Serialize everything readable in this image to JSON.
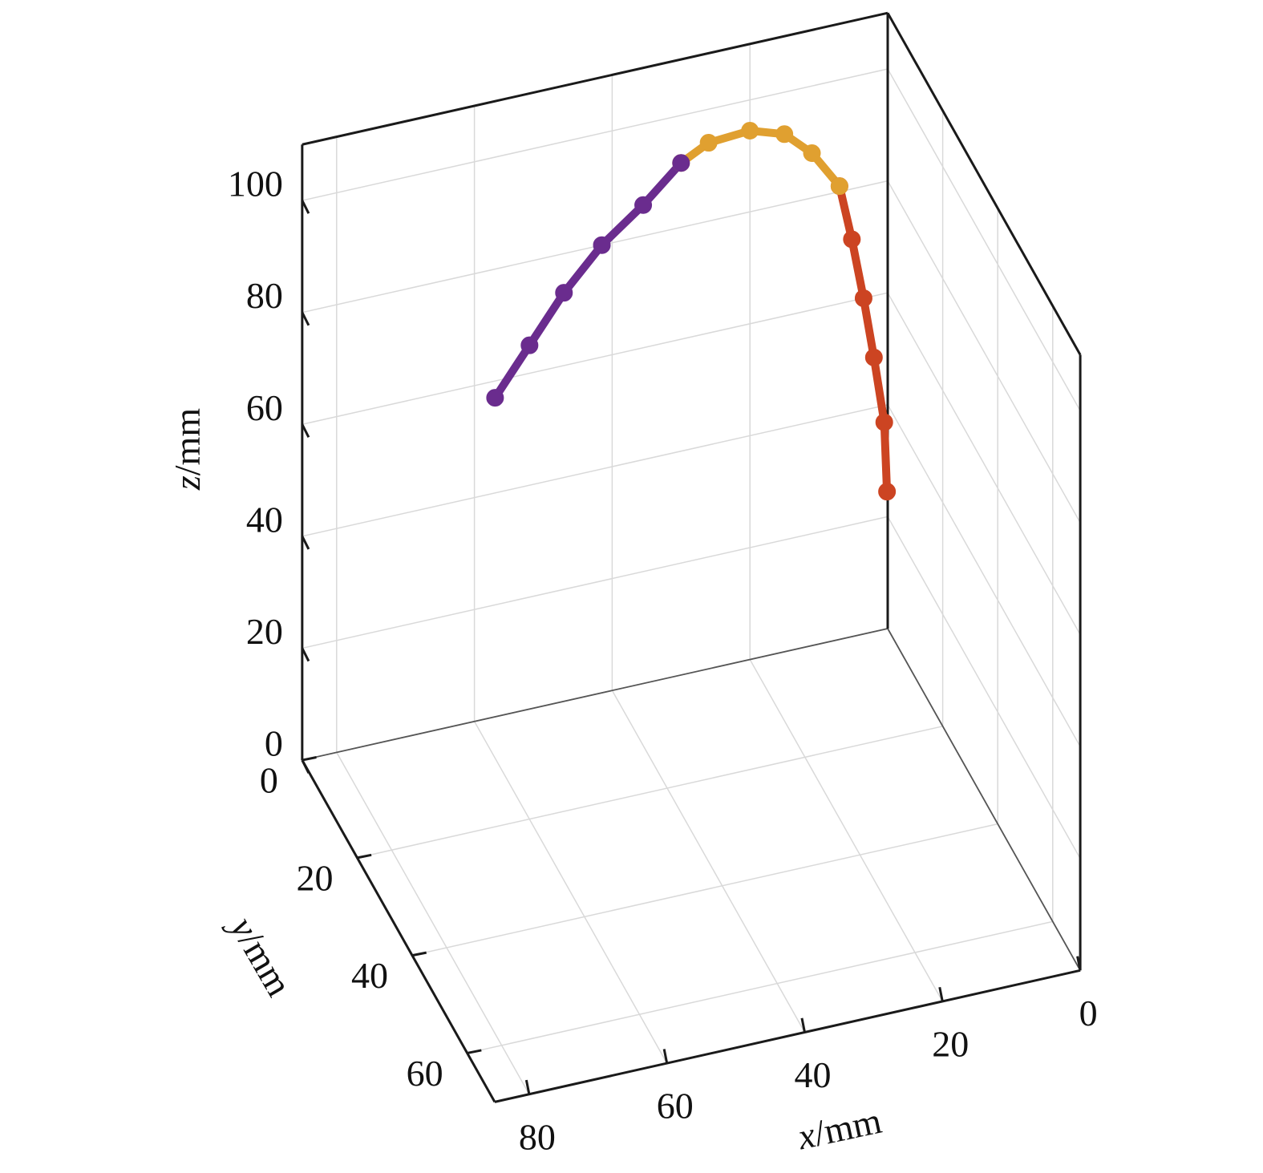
{
  "chart_data": {
    "type": "line3d",
    "xlabel": {
      "var": "x",
      "unit": "/mm"
    },
    "ylabel": {
      "var": "y",
      "unit": "/mm"
    },
    "zlabel": {
      "var": "z",
      "unit": "/mm"
    },
    "xlim": [
      0,
      85
    ],
    "ylim": [
      0,
      70
    ],
    "zlim": [
      0,
      110
    ],
    "x_ticks": [
      "0",
      "20",
      "40",
      "60",
      "80"
    ],
    "y_ticks": [
      "0",
      "20",
      "40",
      "60"
    ],
    "z_ticks": [
      "0",
      "20",
      "40",
      "60",
      "80",
      "100"
    ],
    "grid": true,
    "view": "3d-perspective",
    "series": [
      {
        "color": "#cc4422",
        "points": [
          {
            "x": 0.1,
            "y": 0,
            "z": 24.5
          },
          {
            "x": 0.5,
            "y": 0,
            "z": 37
          },
          {
            "x": 2,
            "y": 0,
            "z": 49
          },
          {
            "x": 3.5,
            "y": 0,
            "z": 60
          },
          {
            "x": 5.2,
            "y": 0,
            "z": 71
          },
          {
            "x": 7,
            "y": 0,
            "z": 81
          }
        ]
      },
      {
        "color": "#e0a030",
        "points": [
          {
            "x": 7,
            "y": 0,
            "z": 81
          },
          {
            "x": 11,
            "y": 0,
            "z": 88
          },
          {
            "x": 15,
            "y": 0,
            "z": 92.5
          },
          {
            "x": 20,
            "y": 0,
            "z": 94.5
          },
          {
            "x": 26,
            "y": 0,
            "z": 94
          },
          {
            "x": 30,
            "y": 0,
            "z": 91.5
          }
        ]
      },
      {
        "color": "#6a2c8e",
        "points": [
          {
            "x": 30,
            "y": 0,
            "z": 91.5
          },
          {
            "x": 35.5,
            "y": 0,
            "z": 85.5
          },
          {
            "x": 41.5,
            "y": 0,
            "z": 80
          },
          {
            "x": 47,
            "y": 0,
            "z": 73
          },
          {
            "x": 52,
            "y": 0,
            "z": 65
          },
          {
            "x": 57,
            "y": 0,
            "z": 57
          }
        ]
      }
    ]
  }
}
